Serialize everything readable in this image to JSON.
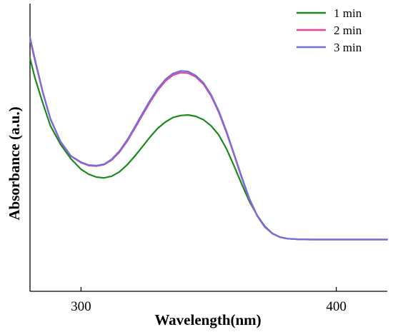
{
  "chart_data": {
    "type": "line",
    "title": "",
    "xlabel": "Wavelength(nm)",
    "ylabel": "Absorbance (a.u.)",
    "xlim": [
      280,
      420
    ],
    "ylim": [
      0,
      1
    ],
    "x_ticks": [
      "300",
      "400"
    ],
    "y_ticks": [],
    "grid": false,
    "legend_position": "top-right",
    "series": [
      {
        "name": "1 min",
        "color": "#1a8a1a",
        "points": [
          [
            280,
            0.81
          ],
          [
            282,
            0.74
          ],
          [
            285,
            0.654
          ],
          [
            288,
            0.575
          ],
          [
            292,
            0.51
          ],
          [
            296,
            0.461
          ],
          [
            300,
            0.424
          ],
          [
            303,
            0.407
          ],
          [
            306,
            0.397
          ],
          [
            309,
            0.394
          ],
          [
            312,
            0.4
          ],
          [
            315,
            0.415
          ],
          [
            318,
            0.439
          ],
          [
            321,
            0.469
          ],
          [
            324,
            0.502
          ],
          [
            327,
            0.536
          ],
          [
            330,
            0.566
          ],
          [
            333,
            0.588
          ],
          [
            336,
            0.604
          ],
          [
            339,
            0.611
          ],
          [
            342,
            0.613
          ],
          [
            345,
            0.608
          ],
          [
            348,
            0.596
          ],
          [
            351,
            0.575
          ],
          [
            354,
            0.543
          ],
          [
            357,
            0.495
          ],
          [
            360,
            0.435
          ],
          [
            363,
            0.372
          ],
          [
            366,
            0.312
          ],
          [
            369,
            0.264
          ],
          [
            372,
            0.226
          ],
          [
            375,
            0.201
          ],
          [
            378,
            0.188
          ],
          [
            381,
            0.183
          ],
          [
            385,
            0.181
          ],
          [
            390,
            0.18
          ],
          [
            400,
            0.18
          ],
          [
            410,
            0.18
          ],
          [
            420,
            0.18
          ]
        ]
      },
      {
        "name": "2 min",
        "color": "#e8449a",
        "points": [
          [
            280,
            0.875
          ],
          [
            282,
            0.8
          ],
          [
            285,
            0.69
          ],
          [
            288,
            0.598
          ],
          [
            292,
            0.518
          ],
          [
            296,
            0.47
          ],
          [
            300,
            0.447
          ],
          [
            303,
            0.437
          ],
          [
            306,
            0.435
          ],
          [
            309,
            0.44
          ],
          [
            312,
            0.456
          ],
          [
            315,
            0.483
          ],
          [
            318,
            0.52
          ],
          [
            321,
            0.565
          ],
          [
            324,
            0.611
          ],
          [
            327,
            0.657
          ],
          [
            330,
            0.698
          ],
          [
            333,
            0.73
          ],
          [
            336,
            0.751
          ],
          [
            339,
            0.76
          ],
          [
            342,
            0.758
          ],
          [
            345,
            0.745
          ],
          [
            348,
            0.719
          ],
          [
            351,
            0.678
          ],
          [
            354,
            0.621
          ],
          [
            357,
            0.551
          ],
          [
            360,
            0.473
          ],
          [
            363,
            0.393
          ],
          [
            366,
            0.319
          ],
          [
            369,
            0.262
          ],
          [
            372,
            0.223
          ],
          [
            375,
            0.2
          ],
          [
            378,
            0.188
          ],
          [
            381,
            0.183
          ],
          [
            385,
            0.181
          ],
          [
            390,
            0.18
          ],
          [
            400,
            0.18
          ],
          [
            410,
            0.18
          ],
          [
            420,
            0.18
          ]
        ]
      },
      {
        "name": "3 min",
        "color": "#7070e0",
        "points": [
          [
            280,
            0.883
          ],
          [
            282,
            0.805
          ],
          [
            285,
            0.693
          ],
          [
            288,
            0.6
          ],
          [
            292,
            0.52
          ],
          [
            296,
            0.471
          ],
          [
            300,
            0.449
          ],
          [
            303,
            0.439
          ],
          [
            306,
            0.437
          ],
          [
            309,
            0.442
          ],
          [
            312,
            0.459
          ],
          [
            315,
            0.487
          ],
          [
            318,
            0.525
          ],
          [
            321,
            0.57
          ],
          [
            324,
            0.617
          ],
          [
            327,
            0.663
          ],
          [
            330,
            0.704
          ],
          [
            333,
            0.736
          ],
          [
            336,
            0.757
          ],
          [
            339,
            0.766
          ],
          [
            342,
            0.764
          ],
          [
            345,
            0.75
          ],
          [
            348,
            0.724
          ],
          [
            351,
            0.683
          ],
          [
            354,
            0.626
          ],
          [
            357,
            0.556
          ],
          [
            360,
            0.477
          ],
          [
            363,
            0.397
          ],
          [
            366,
            0.322
          ],
          [
            369,
            0.264
          ],
          [
            372,
            0.224
          ],
          [
            375,
            0.201
          ],
          [
            378,
            0.188
          ],
          [
            381,
            0.183
          ],
          [
            385,
            0.181
          ],
          [
            390,
            0.18
          ],
          [
            400,
            0.18
          ],
          [
            410,
            0.18
          ],
          [
            420,
            0.18
          ]
        ]
      }
    ]
  }
}
